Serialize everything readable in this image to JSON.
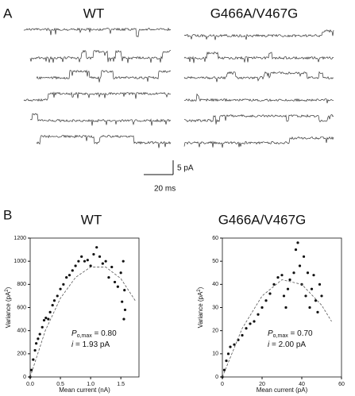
{
  "panels": {
    "a": {
      "label": "A",
      "left_title": "WT",
      "right_title": "G466A/V467G",
      "scale_y": "5 pA",
      "scale_x": "20 ms"
    },
    "b": {
      "label": "B"
    }
  },
  "chart_data": [
    {
      "type": "scatter",
      "title": "WT",
      "xlabel": "Mean current (nA)",
      "ylabel_parts": [
        "Variance (pA",
        "2",
        ")"
      ],
      "xlim": [
        0,
        1.8
      ],
      "xticks": [
        {
          "value": 0,
          "label": "0.0"
        },
        0.5,
        {
          "value": 1,
          "label": "1.0"
        },
        1.5
      ],
      "ylim": [
        0,
        1200
      ],
      "yticks": [
        0,
        200,
        400,
        600,
        800,
        1000,
        1200
      ],
      "annotation": {
        "p": "P",
        "sub": "o,max",
        "p_rest": " = 0.80",
        "i": "i",
        "i_rest": " = 1.93 pA"
      },
      "series": [
        {
          "color": "#111111",
          "x": [
            0,
            0.02,
            0.05,
            0.08,
            0.1,
            0.13,
            0.16,
            0.2,
            0.23,
            0.26,
            0.3,
            0.33,
            0.37,
            0.4,
            0.45,
            0.5,
            0.55,
            0.6,
            0.65,
            0.7,
            0.75,
            0.8,
            0.85,
            0.9,
            0.95,
            1.0,
            1.05,
            1.1,
            1.15,
            1.2,
            1.25,
            1.3,
            1.35,
            1.4,
            1.45,
            1.5,
            1.52,
            1.54,
            1.55,
            1.56,
            1.57
          ],
          "values": [
            0,
            60,
            150,
            230,
            290,
            330,
            370,
            430,
            490,
            510,
            500,
            560,
            620,
            660,
            700,
            760,
            800,
            860,
            880,
            920,
            960,
            1000,
            1040,
            1000,
            1010,
            960,
            1060,
            1120,
            1040,
            980,
            1000,
            860,
            950,
            820,
            780,
            900,
            650,
            1000,
            500,
            750,
            580
          ]
        },
        {
          "color": "#555555",
          "dashed": true,
          "x": [
            0,
            0.25,
            0.5,
            0.75,
            1.0,
            1.25,
            1.5,
            1.75
          ],
          "values": [
            0,
            400,
            680,
            860,
            950,
            950,
            850,
            650
          ]
        }
      ]
    },
    {
      "type": "scatter",
      "title": "G466A/V467G",
      "xlabel": "Mean current (pA)",
      "ylabel_parts": [
        "Variance (pA",
        "2",
        ")"
      ],
      "xlim": [
        0,
        60
      ],
      "xticks": [
        0,
        20,
        40,
        60
      ],
      "ylim": [
        0,
        60
      ],
      "yticks": [
        0,
        10,
        20,
        30,
        40,
        50,
        60
      ],
      "annotation": {
        "p": "P",
        "sub": "o,max",
        "p_rest": " = 0.70",
        "i": "i",
        "i_rest": " = 2.00 pA"
      },
      "series": [
        {
          "color": "#111111",
          "x": [
            0,
            1,
            2,
            3,
            4,
            6,
            8,
            10,
            12,
            14,
            16,
            18,
            20,
            22,
            24,
            26,
            28,
            30,
            31,
            32,
            33,
            34,
            36,
            37,
            38,
            39,
            40,
            41,
            42,
            43,
            44,
            45,
            46,
            47,
            48,
            49,
            50
          ],
          "values": [
            0,
            3,
            7,
            10,
            13,
            14,
            16,
            18,
            21,
            23,
            24,
            27,
            30,
            33,
            36,
            40,
            43,
            44,
            35,
            30,
            38,
            42,
            45,
            55,
            58,
            48,
            40,
            52,
            35,
            45,
            30,
            38,
            44,
            33,
            28,
            40,
            35
          ]
        },
        {
          "color": "#555555",
          "dashed": true,
          "x": [
            0,
            10,
            20,
            30,
            40,
            50,
            55
          ],
          "values": [
            0,
            21,
            35,
            42,
            40,
            31,
            24
          ]
        }
      ]
    }
  ]
}
